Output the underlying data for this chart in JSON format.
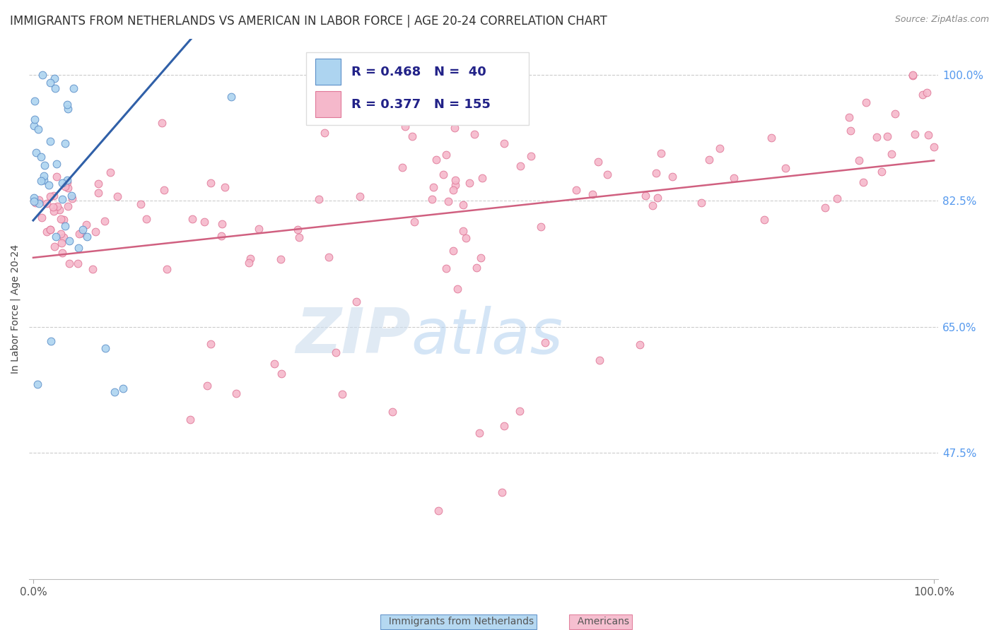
{
  "title": "IMMIGRANTS FROM NETHERLANDS VS AMERICAN IN LABOR FORCE | AGE 20-24 CORRELATION CHART",
  "source": "Source: ZipAtlas.com",
  "ylabel": "In Labor Force | Age 20-24",
  "y_tick_labels_right": [
    "47.5%",
    "65.0%",
    "82.5%",
    "100.0%"
  ],
  "y_tick_values_right": [
    0.475,
    0.65,
    0.825,
    1.0
  ],
  "blue_color": "#ADD4F0",
  "pink_color": "#F5B8CB",
  "blue_edge_color": "#5B8EC8",
  "pink_edge_color": "#E07898",
  "blue_line_color": "#3060A8",
  "pink_line_color": "#D06080",
  "watermark_zip": "ZIP",
  "watermark_atlas": "atlas",
  "blue_R": 0.468,
  "blue_N": 40,
  "pink_R": 0.377,
  "pink_N": 155,
  "title_fontsize": 12,
  "axis_fontsize": 11,
  "legend_fontsize": 13,
  "right_tick_color": "#5599EE"
}
